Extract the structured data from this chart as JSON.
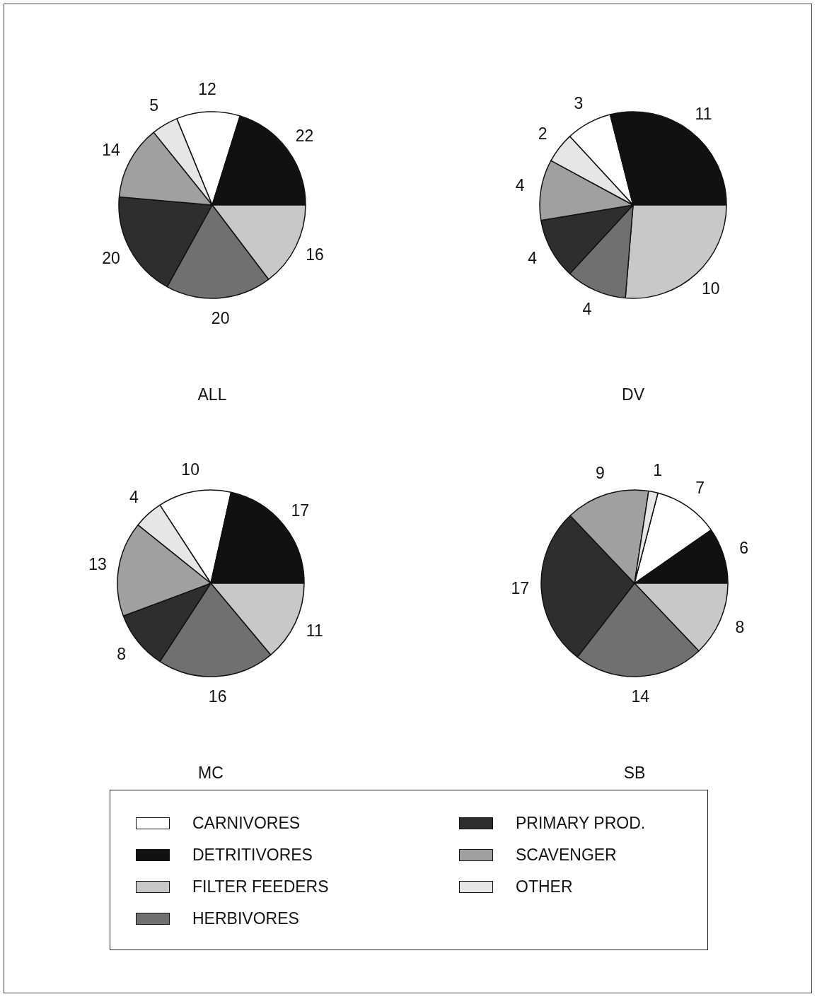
{
  "chart_data": [
    {
      "type": "pie",
      "title": "ALL",
      "categories": [
        "CARNIVORES",
        "DETRITIVORES",
        "FILTER FEEDERS",
        "HERBIVORES",
        "PRIMARY PROD.",
        "SCAVENGER",
        "OTHER"
      ],
      "values": [
        12,
        22,
        16,
        20,
        20,
        14,
        5
      ],
      "colors": [
        "#ffffff",
        "#111111",
        "#c8c8c8",
        "#707070",
        "#2e2e2e",
        "#a0a0a0",
        "#e6e6e6"
      ],
      "data_labels": true,
      "legend": "bottom"
    },
    {
      "type": "pie",
      "title": "DV",
      "categories": [
        null,
        null,
        null,
        null,
        null,
        null,
        null
      ],
      "values": [
        3,
        11,
        10,
        4,
        4,
        4,
        2
      ],
      "colors": [
        "#ffffff",
        "#111111",
        "#c8c8c8",
        "#707070",
        "#2e2e2e",
        "#a0a0a0",
        "#e6e6e6"
      ],
      "data_labels": true
    },
    {
      "type": "pie",
      "title": "MC",
      "categories": [
        null,
        null,
        null,
        null,
        null,
        null,
        null
      ],
      "values": [
        10,
        17,
        11,
        16,
        8,
        13,
        4
      ],
      "colors": [
        "#ffffff",
        "#111111",
        "#c8c8c8",
        "#707070",
        "#2e2e2e",
        "#a0a0a0",
        "#e6e6e6"
      ],
      "data_labels": true
    },
    {
      "type": "pie",
      "title": "SB",
      "categories": [
        null,
        null,
        null,
        null,
        null,
        null,
        null
      ],
      "values": [
        7,
        6,
        8,
        14,
        17,
        9,
        1
      ],
      "colors": [
        "#ffffff",
        "#111111",
        "#c8c8c8",
        "#707070",
        "#2e2e2e",
        "#a0a0a0",
        "#e6e6e6"
      ],
      "data_labels": true
    }
  ]
}
